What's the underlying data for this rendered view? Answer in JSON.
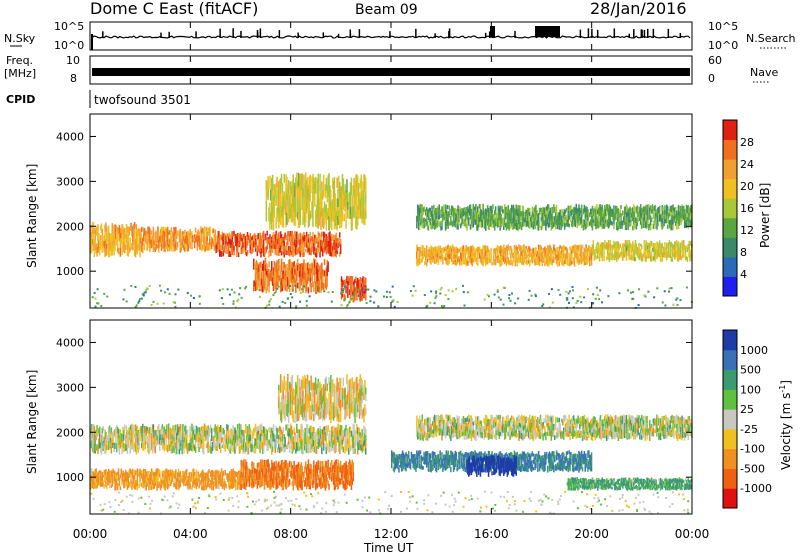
{
  "header": {
    "station": "Dome C East (fitACF)",
    "beam": "Beam 09",
    "date": "28/Jan/2016"
  },
  "status_panels": {
    "nsky_label": "N.Sky",
    "nsearch_label": "N.Search",
    "freq_label_top": "Freq.",
    "freq_label_unit": "[MHz]",
    "nave_label": "Nave",
    "cpid_label": "CPID",
    "cpid_value": "twofsound 3501",
    "noise_ticks_left": [
      "10^5",
      "10^0"
    ],
    "noise_ticks_right": [
      "10^5",
      "10^0"
    ],
    "freq_ticks": [
      "10",
      "8"
    ],
    "nave_ticks": [
      "60",
      "0"
    ]
  },
  "time_axis": {
    "label": "Time UT",
    "ticks": [
      "00:00",
      "04:00",
      "08:00",
      "12:00",
      "16:00",
      "20:00",
      "00:00"
    ]
  },
  "range_axis": {
    "label": "Slant Range [km]",
    "ticks": [
      "1000",
      "2000",
      "3000",
      "4000"
    ]
  },
  "power_scale": {
    "label": "Power [dB]",
    "ticks": [
      "4",
      "8",
      "12",
      "16",
      "20",
      "24",
      "28"
    ],
    "colors": [
      "#1e1ef0",
      "#2a6ab8",
      "#3a8a6a",
      "#5aa640",
      "#a8c83a",
      "#f0c020",
      "#f0a030",
      "#f07020",
      "#e02010"
    ]
  },
  "velocity_scale": {
    "label": "Velocity [m s",
    "label_sup": "-1",
    "label_end": "]",
    "ticks": [
      "1000",
      "500",
      "100",
      "25",
      "-25",
      "-100",
      "-500",
      "-1000"
    ],
    "colors": [
      "#1e3ca8",
      "#3a70b8",
      "#3a9a70",
      "#60c040",
      "#c8c8c0",
      "#f0c020",
      "#f09020",
      "#f06010",
      "#e01010"
    ]
  },
  "chart_data": [
    {
      "type": "heatmap",
      "title": "Power",
      "xlabel": "Time UT",
      "ylabel": "Slant Range [km]",
      "xlim": [
        0,
        24
      ],
      "ylim": [
        180,
        4500
      ],
      "colorbar_label": "Power [dB]",
      "colorbar_range": [
        0,
        32
      ],
      "bands": [
        {
          "t0": 0.0,
          "t1": 2.0,
          "r0": 1300,
          "r1": 2100,
          "value": 22
        },
        {
          "t0": 2.0,
          "t1": 5.0,
          "r0": 1400,
          "r1": 2000,
          "value": 24
        },
        {
          "t0": 5.0,
          "t1": 10.0,
          "r0": 1300,
          "r1": 1900,
          "value": 27
        },
        {
          "t0": 7.0,
          "t1": 11.0,
          "r0": 1900,
          "r1": 3200,
          "value": 18
        },
        {
          "t0": 6.5,
          "t1": 9.5,
          "r0": 500,
          "r1": 1300,
          "value": 26
        },
        {
          "t0": 10.0,
          "t1": 11.0,
          "r0": 300,
          "r1": 900,
          "value": 29
        },
        {
          "t0": 13.0,
          "t1": 20.0,
          "r0": 1100,
          "r1": 1600,
          "value": 22
        },
        {
          "t0": 13.0,
          "t1": 24.0,
          "r0": 1900,
          "r1": 2500,
          "value": 12
        },
        {
          "t0": 20.0,
          "t1": 24.0,
          "r0": 1200,
          "r1": 1700,
          "value": 18
        }
      ]
    },
    {
      "type": "heatmap",
      "title": "Velocity",
      "xlabel": "Time UT",
      "ylabel": "Slant Range [km]",
      "xlim": [
        0,
        24
      ],
      "ylim": [
        180,
        4500
      ],
      "colorbar_label": "Velocity [m s-1]",
      "colorbar_ticks": [
        1000,
        500,
        100,
        25,
        -25,
        -100,
        -500,
        -1000
      ],
      "bands": [
        {
          "t0": 0.0,
          "t1": 11.0,
          "r0": 1500,
          "r1": 2200,
          "value": 0
        },
        {
          "t0": 0.0,
          "t1": 6.0,
          "r0": 700,
          "r1": 1200,
          "value": -100
        },
        {
          "t0": 6.0,
          "t1": 10.5,
          "r0": 700,
          "r1": 1400,
          "value": -300
        },
        {
          "t0": 7.5,
          "t1": 11.0,
          "r0": 2200,
          "r1": 3300,
          "value": -25
        },
        {
          "t0": 12.0,
          "t1": 20.0,
          "r0": 1100,
          "r1": 1600,
          "value": 300
        },
        {
          "t0": 15.0,
          "t1": 17.0,
          "r0": 1000,
          "r1": 1500,
          "value": 1000
        },
        {
          "t0": 13.0,
          "t1": 24.0,
          "r0": 1800,
          "r1": 2400,
          "value": 0
        },
        {
          "t0": 19.0,
          "t1": 24.0,
          "r0": 700,
          "r1": 1000,
          "value": 100
        }
      ]
    }
  ]
}
